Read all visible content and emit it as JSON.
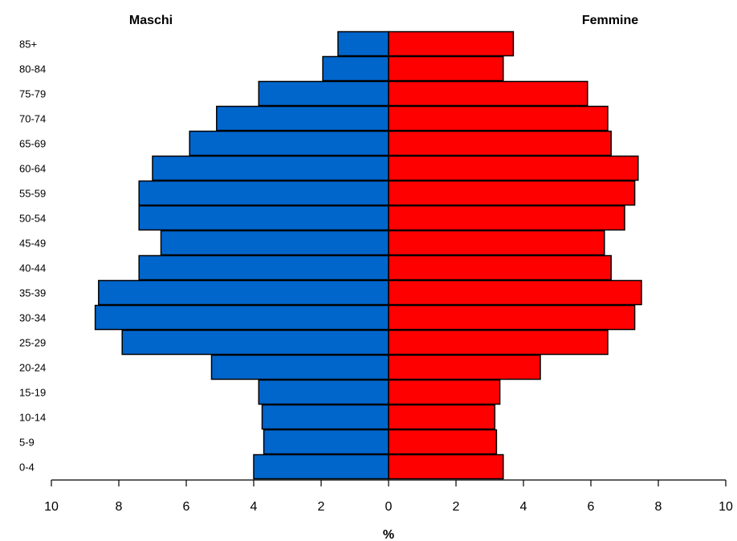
{
  "chart_data": {
    "type": "bar",
    "orientation": "horizontal-population-pyramid",
    "categories": [
      "0-4",
      "5-9",
      "10-14",
      "15-19",
      "20-24",
      "25-29",
      "30-34",
      "35-39",
      "40-44",
      "45-49",
      "50-54",
      "55-59",
      "60-64",
      "65-69",
      "70-74",
      "75-79",
      "80-84",
      "85+"
    ],
    "series": [
      {
        "name": "Maschi",
        "color": "#0066cc",
        "values": [
          4.0,
          3.7,
          3.75,
          3.85,
          5.25,
          7.9,
          8.7,
          8.6,
          7.4,
          6.75,
          7.4,
          7.4,
          7.0,
          5.9,
          5.1,
          3.85,
          1.95,
          1.5
        ]
      },
      {
        "name": "Femmine",
        "color": "#ff0000",
        "values": [
          3.4,
          3.2,
          3.15,
          3.3,
          4.5,
          6.5,
          7.3,
          7.5,
          6.6,
          6.4,
          7.0,
          7.3,
          7.4,
          6.6,
          6.5,
          5.9,
          3.4,
          3.7
        ]
      }
    ],
    "left_title": "Maschi",
    "right_title": "Femmine",
    "xlabel": "%",
    "xlim": [
      -10,
      10
    ],
    "xticks": [
      "10",
      "8",
      "6",
      "4",
      "2",
      "0",
      "2",
      "4",
      "6",
      "8",
      "10"
    ],
    "grid": false,
    "legend": "none"
  }
}
